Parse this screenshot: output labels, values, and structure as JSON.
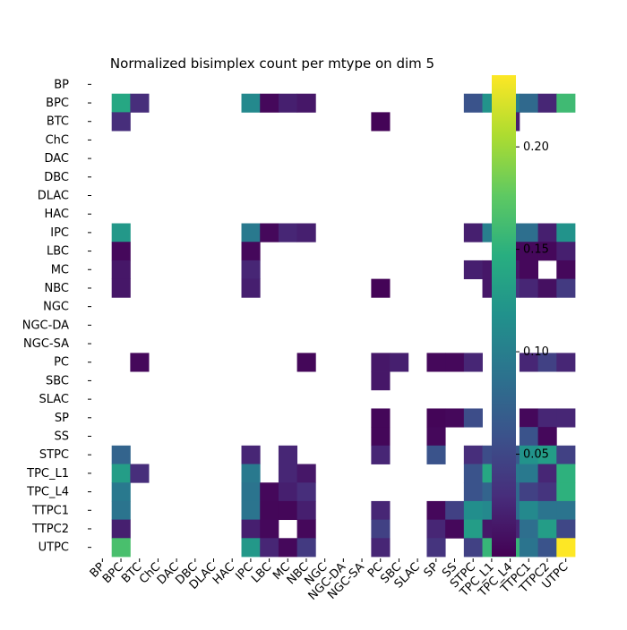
{
  "chart_data": {
    "type": "heatmap",
    "title": "Normalized bisimplex count per mtype on dim 5",
    "xlabel": "",
    "ylabel": "",
    "categories": [
      "BP",
      "BPC",
      "BTC",
      "ChC",
      "DAC",
      "DBC",
      "DLAC",
      "HAC",
      "IPC",
      "LBC",
      "MC",
      "NBC",
      "NGC",
      "NGC-DA",
      "NGC-SA",
      "PC",
      "SBC",
      "SLAC",
      "SP",
      "SS",
      "STPC",
      "TPC_L1",
      "TPC_L4",
      "TTPC1",
      "TTPC2",
      "UTPC"
    ],
    "colormap": "viridis",
    "vmin": 0.0,
    "vmax": 0.235,
    "colorbar_ticks": [
      "0.05",
      "0.10",
      "0.15",
      "0.20"
    ],
    "colorbar_tick_values": [
      0.05,
      0.1,
      0.15,
      0.2
    ],
    "missing_color": "#ffffff",
    "rows": [
      {
        "label": "BP",
        "values": [
          null,
          null,
          null,
          null,
          null,
          null,
          null,
          null,
          null,
          null,
          null,
          null,
          null,
          null,
          null,
          null,
          null,
          null,
          null,
          null,
          null,
          null,
          null,
          null,
          null,
          null
        ]
      },
      {
        "label": "BPC",
        "values": [
          null,
          0.14,
          0.03,
          null,
          null,
          null,
          null,
          null,
          0.11,
          0.005,
          0.02,
          0.015,
          null,
          null,
          null,
          null,
          null,
          null,
          null,
          null,
          0.06,
          0.12,
          0.1,
          0.08,
          0.025,
          0.16
        ]
      },
      {
        "label": "BTC",
        "values": [
          null,
          0.03,
          null,
          null,
          null,
          null,
          null,
          null,
          null,
          null,
          null,
          null,
          null,
          null,
          null,
          0.002,
          null,
          null,
          null,
          null,
          null,
          null,
          0.02,
          null,
          null,
          null
        ]
      },
      {
        "label": "ChC",
        "values": [
          null,
          null,
          null,
          null,
          null,
          null,
          null,
          null,
          null,
          null,
          null,
          null,
          null,
          null,
          null,
          null,
          null,
          null,
          null,
          null,
          null,
          null,
          null,
          null,
          null,
          null
        ]
      },
      {
        "label": "DAC",
        "values": [
          null,
          null,
          null,
          null,
          null,
          null,
          null,
          null,
          null,
          null,
          null,
          null,
          null,
          null,
          null,
          null,
          null,
          null,
          null,
          null,
          null,
          null,
          null,
          null,
          null,
          null
        ]
      },
      {
        "label": "DBC",
        "values": [
          null,
          null,
          null,
          null,
          null,
          null,
          null,
          null,
          null,
          null,
          null,
          null,
          null,
          null,
          null,
          null,
          null,
          null,
          null,
          null,
          null,
          null,
          null,
          null,
          null,
          null
        ]
      },
      {
        "label": "DLAC",
        "values": [
          null,
          null,
          null,
          null,
          null,
          null,
          null,
          null,
          null,
          null,
          null,
          null,
          null,
          null,
          null,
          null,
          null,
          null,
          null,
          null,
          null,
          null,
          null,
          null,
          null,
          null
        ]
      },
      {
        "label": "HAC",
        "values": [
          null,
          null,
          null,
          null,
          null,
          null,
          null,
          null,
          null,
          null,
          null,
          null,
          null,
          null,
          null,
          null,
          null,
          null,
          null,
          null,
          null,
          null,
          null,
          null,
          null,
          null
        ]
      },
      {
        "label": "IPC",
        "values": [
          null,
          0.125,
          null,
          null,
          null,
          null,
          null,
          null,
          0.095,
          0.005,
          0.025,
          0.02,
          null,
          null,
          null,
          null,
          null,
          null,
          null,
          null,
          0.02,
          0.1,
          0.085,
          0.085,
          0.02,
          0.12
        ]
      },
      {
        "label": "LBC",
        "values": [
          null,
          0.005,
          null,
          null,
          null,
          null,
          null,
          null,
          0.005,
          null,
          null,
          null,
          null,
          null,
          null,
          null,
          null,
          null,
          null,
          null,
          null,
          null,
          0.005,
          0.005,
          0.005,
          0.02
        ]
      },
      {
        "label": "MC",
        "values": [
          null,
          0.015,
          null,
          null,
          null,
          null,
          null,
          null,
          0.025,
          null,
          null,
          null,
          null,
          null,
          null,
          null,
          null,
          null,
          null,
          null,
          0.02,
          0.015,
          0.015,
          0.005,
          null,
          0.005
        ]
      },
      {
        "label": "NBC",
        "values": [
          null,
          0.015,
          null,
          null,
          null,
          null,
          null,
          null,
          0.02,
          null,
          null,
          null,
          null,
          null,
          null,
          0.002,
          null,
          null,
          null,
          null,
          null,
          0.015,
          0.035,
          0.025,
          0.01,
          0.04
        ]
      },
      {
        "label": "NGC",
        "values": [
          null,
          null,
          null,
          null,
          null,
          null,
          null,
          null,
          null,
          null,
          null,
          null,
          null,
          null,
          null,
          null,
          null,
          null,
          null,
          null,
          null,
          null,
          null,
          null,
          null,
          null
        ]
      },
      {
        "label": "NGC-DA",
        "values": [
          null,
          null,
          null,
          null,
          null,
          null,
          null,
          null,
          null,
          null,
          null,
          null,
          null,
          null,
          null,
          null,
          null,
          null,
          null,
          null,
          null,
          null,
          null,
          null,
          null,
          null
        ]
      },
      {
        "label": "NGC-SA",
        "values": [
          null,
          null,
          null,
          null,
          null,
          null,
          null,
          null,
          null,
          null,
          null,
          null,
          null,
          null,
          null,
          null,
          null,
          null,
          null,
          null,
          null,
          null,
          null,
          null,
          null,
          null
        ]
      },
      {
        "label": "PC",
        "values": [
          null,
          null,
          0.005,
          null,
          null,
          null,
          null,
          null,
          null,
          null,
          null,
          0.004,
          null,
          null,
          null,
          0.015,
          0.02,
          null,
          0.005,
          0.005,
          0.025,
          null,
          null,
          0.025,
          0.045,
          0.025
        ]
      },
      {
        "label": "SBC",
        "values": [
          null,
          null,
          null,
          null,
          null,
          null,
          null,
          null,
          null,
          null,
          null,
          null,
          null,
          null,
          null,
          0.015,
          null,
          null,
          null,
          null,
          null,
          null,
          null,
          null,
          null,
          null
        ]
      },
      {
        "label": "SLAC",
        "values": [
          null,
          null,
          null,
          null,
          null,
          null,
          null,
          null,
          null,
          null,
          null,
          null,
          null,
          null,
          null,
          null,
          null,
          null,
          null,
          null,
          null,
          null,
          null,
          null,
          null,
          null
        ]
      },
      {
        "label": "SP",
        "values": [
          null,
          null,
          null,
          null,
          null,
          null,
          null,
          null,
          null,
          null,
          null,
          null,
          null,
          null,
          null,
          0.004,
          null,
          null,
          0.003,
          0.005,
          0.055,
          null,
          null,
          0.005,
          0.025,
          0.025
        ]
      },
      {
        "label": "SS",
        "values": [
          null,
          null,
          null,
          null,
          null,
          null,
          null,
          null,
          null,
          null,
          null,
          null,
          null,
          null,
          null,
          0.004,
          null,
          null,
          0.005,
          null,
          null,
          null,
          null,
          0.06,
          0.005,
          null
        ]
      },
      {
        "label": "STPC",
        "values": [
          null,
          0.075,
          null,
          null,
          null,
          null,
          null,
          null,
          0.025,
          null,
          0.025,
          null,
          null,
          null,
          null,
          0.025,
          null,
          null,
          0.06,
          null,
          0.03,
          0.055,
          0.065,
          0.12,
          0.13,
          0.045
        ]
      },
      {
        "label": "TPC_L1",
        "values": [
          null,
          0.13,
          0.03,
          null,
          null,
          null,
          null,
          null,
          0.095,
          null,
          0.025,
          0.015,
          null,
          null,
          null,
          null,
          null,
          null,
          null,
          null,
          0.06,
          0.14,
          0.095,
          0.095,
          0.025,
          0.15
        ]
      },
      {
        "label": "TPC_L4",
        "values": [
          null,
          0.095,
          null,
          null,
          null,
          null,
          null,
          null,
          0.09,
          0.005,
          0.02,
          0.03,
          null,
          null,
          null,
          null,
          null,
          null,
          null,
          null,
          0.06,
          0.075,
          0.08,
          0.045,
          0.035,
          0.15
        ]
      },
      {
        "label": "TTPC1",
        "values": [
          null,
          0.09,
          null,
          null,
          null,
          null,
          null,
          null,
          0.09,
          0.004,
          0.004,
          0.02,
          null,
          null,
          null,
          0.025,
          null,
          null,
          0.005,
          0.045,
          0.115,
          0.11,
          0.085,
          0.11,
          0.09,
          0.09
        ]
      },
      {
        "label": "TTPC2",
        "values": [
          null,
          0.02,
          null,
          null,
          null,
          null,
          null,
          null,
          0.02,
          0.005,
          null,
          0.005,
          null,
          null,
          null,
          0.045,
          null,
          null,
          0.025,
          0.005,
          0.13,
          0.015,
          0.025,
          0.085,
          0.13,
          0.05
        ]
      },
      {
        "label": "UTPC",
        "values": [
          null,
          0.165,
          null,
          null,
          null,
          null,
          null,
          null,
          0.125,
          0.025,
          0.005,
          0.04,
          null,
          null,
          null,
          0.025,
          null,
          null,
          0.035,
          null,
          0.045,
          0.155,
          0.155,
          0.09,
          0.06,
          0.235
        ]
      }
    ]
  }
}
